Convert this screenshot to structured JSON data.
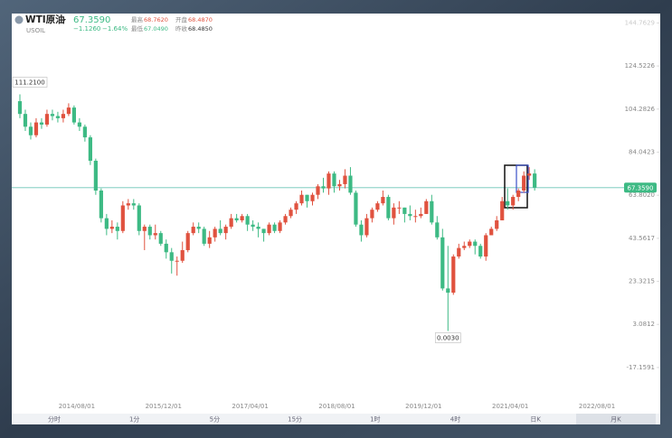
{
  "header": {
    "name": "WTI原油",
    "symbol": "USOIL",
    "price": "67.3590",
    "change": "−1.1260",
    "change_pct": "−1.64%",
    "stats": [
      {
        "label": "最高",
        "value": "68.7620",
        "tone": "up"
      },
      {
        "label": "开盘",
        "value": "68.4870",
        "tone": "up"
      },
      {
        "label": "最低",
        "value": "67.0490",
        "tone": "down"
      },
      {
        "label": "昨收",
        "value": "68.4850",
        "tone": "flat"
      }
    ]
  },
  "chart_data": {
    "type": "candlestick",
    "up_color": "#e0523f",
    "down_color": "#3dba84",
    "price_line_color": "#6cc5b8",
    "categories": [
      "2013/09/01",
      "2013/10/01",
      "2013/11/01",
      "2013/12/01",
      "2014/01/01",
      "2014/02/01",
      "2014/03/01",
      "2014/04/01",
      "2014/05/01",
      "2014/06/01",
      "2014/07/01",
      "2014/08/01",
      "2014/09/01",
      "2014/10/01",
      "2014/11/01",
      "2014/12/01",
      "2015/01/01",
      "2015/02/01",
      "2015/03/01",
      "2015/04/01",
      "2015/05/01",
      "2015/06/01",
      "2015/07/01",
      "2015/08/01",
      "2015/09/01",
      "2015/10/01",
      "2015/11/01",
      "2015/12/01",
      "2016/01/01",
      "2016/02/01",
      "2016/03/01",
      "2016/04/01",
      "2016/05/01",
      "2016/06/01",
      "2016/07/01",
      "2016/08/01",
      "2016/09/01",
      "2016/10/01",
      "2016/11/01",
      "2016/12/01",
      "2017/01/01",
      "2017/02/01",
      "2017/03/01",
      "2017/04/01",
      "2017/05/01",
      "2017/06/01",
      "2017/07/01",
      "2017/08/01",
      "2017/09/01",
      "2017/10/01",
      "2017/11/01",
      "2017/12/01",
      "2018/01/01",
      "2018/02/01",
      "2018/03/01",
      "2018/04/01",
      "2018/05/01",
      "2018/06/01",
      "2018/07/01",
      "2018/08/01",
      "2018/09/01",
      "2018/10/01",
      "2018/11/01",
      "2018/12/01",
      "2019/01/01",
      "2019/02/01",
      "2019/03/01",
      "2019/04/01",
      "2019/05/01",
      "2019/06/01",
      "2019/07/01",
      "2019/08/01",
      "2019/09/01",
      "2019/10/01",
      "2019/11/01",
      "2019/12/01",
      "2020/01/01",
      "2020/02/01",
      "2020/03/01",
      "2020/04/01",
      "2020/05/01",
      "2020/06/01",
      "2020/07/01",
      "2020/08/01",
      "2020/09/01",
      "2020/10/01",
      "2020/11/01",
      "2020/12/01",
      "2021/01/01",
      "2021/02/01",
      "2021/03/01",
      "2021/04/01",
      "2021/05/01",
      "2021/06/01",
      "2021/07/01",
      "2021/08/01"
    ],
    "open": [
      108,
      102,
      96,
      92,
      98,
      97,
      102,
      101,
      100,
      102,
      105,
      98,
      96,
      91,
      80,
      66,
      53,
      48,
      49,
      47,
      59,
      60,
      59,
      47,
      49,
      45,
      46,
      41,
      37,
      33,
      33,
      38,
      46,
      49,
      48,
      41,
      44,
      48,
      46,
      49,
      53,
      52,
      54,
      50,
      49,
      48,
      46,
      50,
      47,
      51,
      54,
      57,
      60,
      64,
      61,
      64,
      68,
      67,
      74,
      68,
      69,
      73,
      65,
      50,
      45,
      53,
      57,
      60,
      63,
      53,
      58,
      58,
      55,
      54,
      54,
      55,
      61,
      51,
      44,
      20,
      18,
      35,
      39,
      40,
      42,
      40,
      35,
      45,
      48,
      52,
      61,
      59,
      63,
      66,
      73,
      74
    ],
    "high": [
      111.21,
      104,
      98,
      100,
      100,
      104,
      104,
      103,
      104,
      107,
      106,
      100,
      97,
      92,
      81,
      67,
      55,
      52,
      51,
      61,
      62,
      62,
      60,
      50,
      50,
      50,
      47,
      43,
      39,
      35,
      42,
      47,
      51,
      51,
      49,
      47,
      49,
      52,
      50,
      55,
      55,
      55,
      55,
      52,
      51,
      48,
      51,
      51,
      52,
      55,
      58,
      61,
      66,
      64,
      65,
      69,
      72,
      75,
      75,
      71,
      76,
      77,
      66,
      52,
      55,
      58,
      61,
      66,
      64,
      60,
      61,
      58,
      59,
      57,
      58,
      62,
      64,
      54,
      48,
      40,
      36,
      41,
      42,
      43,
      43,
      41,
      46,
      49,
      54,
      63,
      67,
      64,
      67,
      75,
      77,
      76
    ],
    "low": [
      100,
      94,
      90,
      91,
      95,
      96,
      99,
      98,
      98,
      101,
      97,
      94,
      89,
      78,
      64,
      51,
      45,
      46,
      43,
      46,
      57,
      57,
      45,
      38,
      43,
      43,
      40,
      34,
      27,
      26,
      32,
      37,
      45,
      46,
      40,
      39,
      42,
      45,
      43,
      48,
      51,
      51,
      47,
      47,
      44,
      42,
      45,
      46,
      46,
      50,
      53,
      55,
      59,
      58,
      59,
      62,
      65,
      64,
      65,
      66,
      67,
      64,
      49,
      42,
      44,
      51,
      56,
      59,
      52,
      50,
      55,
      51,
      52,
      51,
      53,
      55,
      50,
      43,
      19,
      0.003,
      17,
      34,
      38,
      39,
      36,
      34,
      33,
      45,
      47,
      52,
      57,
      57,
      61,
      65,
      71,
      66
    ],
    "close": [
      102,
      96,
      92,
      98,
      97,
      102,
      101,
      100,
      102,
      105,
      98,
      96,
      91,
      80,
      66,
      53,
      48,
      49,
      47,
      59,
      60,
      59,
      47,
      49,
      45,
      46,
      41,
      37,
      33,
      33,
      38,
      46,
      49,
      48,
      41,
      44,
      48,
      46,
      49,
      53,
      52,
      54,
      50,
      49,
      48,
      46,
      50,
      47,
      51,
      54,
      57,
      60,
      64,
      61,
      64,
      68,
      67,
      74,
      68,
      69,
      73,
      65,
      50,
      45,
      53,
      57,
      60,
      63,
      53,
      58,
      58,
      55,
      54,
      54,
      55,
      61,
      51,
      44,
      20,
      18,
      35,
      39,
      40,
      42,
      40,
      35,
      45,
      48,
      52,
      61,
      59,
      63,
      66,
      73,
      74,
      67.359
    ],
    "xlim": [
      "2013/08/01",
      "2023/01/01"
    ],
    "xticks": [
      "2014/08/01",
      "2015/12/01",
      "2017/04/01",
      "2018/08/01",
      "2019/12/01",
      "2021/04/01",
      "2022/08/01"
    ],
    "ylim": [
      -31.19,
      149.18
    ],
    "yticks": [
      144.7629,
      124.5226,
      104.2826,
      84.0423,
      {
        "value": 63.802,
        "label": "63.8020"
      },
      43.5617,
      23.3215,
      3.0812,
      -17.1591
    ],
    "last_price": {
      "value": 67.359,
      "label": "67.3590"
    },
    "max_marker": {
      "value": 111.21,
      "label": "111.2100"
    },
    "min_marker": {
      "value": 0.003,
      "label": "0.0030"
    }
  },
  "toolbar": [
    "分时",
    "1分",
    "5分",
    "15分",
    "1时",
    "4时",
    "日K",
    "月K"
  ]
}
